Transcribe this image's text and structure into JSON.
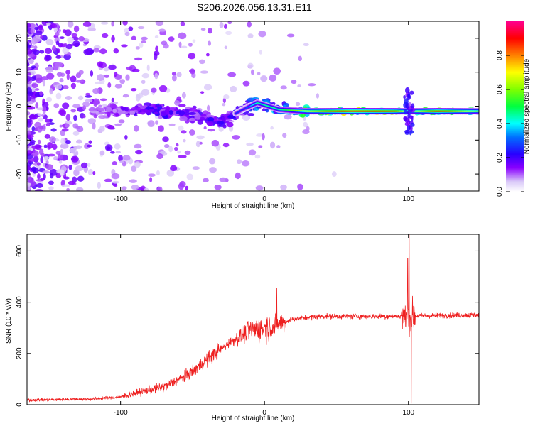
{
  "title": "S206.2026.056.13.31.E11",
  "chart_data": [
    {
      "type": "heatmap",
      "name": "spectrogram",
      "xlabel": "Height of straight line (km)",
      "ylabel": "Frequency (Hz)",
      "xlim": [
        -165,
        149
      ],
      "ylim": [
        -25,
        25
      ],
      "xticks": [
        -100,
        0,
        100
      ],
      "yticks": [
        -20,
        -10,
        0,
        10,
        20
      ],
      "xtick_labels": [
        "-100",
        "0",
        "100"
      ],
      "ytick_labels": [
        "-20",
        "-10",
        "0",
        "10",
        "20"
      ],
      "colorbar": {
        "label": "Normalized spectral amplitude",
        "range": [
          0,
          1
        ],
        "ticks": [
          0.0,
          0.2,
          0.4,
          0.6,
          0.8
        ],
        "tick_labels": [
          "0.0",
          "0.2",
          "0.4",
          "0.6",
          "0.8"
        ],
        "colormap": [
          "#ffffff",
          "#c8a8f0",
          "#7a00ff",
          "#2a00ff",
          "#00a0ff",
          "#00ffff",
          "#00ff60",
          "#80ff00",
          "#ffff00",
          "#ff8000",
          "#ff0000",
          "#ff00a0"
        ]
      },
      "ridge": {
        "description_points": [
          {
            "x": -110,
            "y": -1.5,
            "amp": 0.15
          },
          {
            "x": -80,
            "y": -1.0,
            "amp": 0.3
          },
          {
            "x": -50,
            "y": -2.5,
            "amp": 0.25
          },
          {
            "x": -30,
            "y": -4.5,
            "amp": 0.3
          },
          {
            "x": -15,
            "y": -1.0,
            "amp": 0.25
          },
          {
            "x": -5,
            "y": 1.0,
            "amp": 0.45
          },
          {
            "x": 10,
            "y": -1.0,
            "amp": 0.45
          },
          {
            "x": 30,
            "y": -1.5,
            "amp": 0.7
          },
          {
            "x": 60,
            "y": -1.5,
            "amp": 0.95
          },
          {
            "x": 90,
            "y": -1.5,
            "amp": 0.85
          },
          {
            "x": 100,
            "y": -1.5,
            "amp": 0.6
          },
          {
            "x": 120,
            "y": -1.5,
            "amp": 0.9
          },
          {
            "x": 149,
            "y": -1.5,
            "amp": 0.6
          }
        ]
      }
    },
    {
      "type": "line",
      "name": "snr",
      "xlabel": "Height of straight line (km)",
      "ylabel": "SNR (10 * v/v)",
      "xlim": [
        -165,
        149
      ],
      "ylim": [
        0,
        665
      ],
      "xticks": [
        -100,
        0,
        100
      ],
      "yticks": [
        0,
        200,
        400,
        600
      ],
      "xtick_labels": [
        "-100",
        "0",
        "100"
      ],
      "ytick_labels": [
        "0",
        "200",
        "400",
        "600"
      ],
      "color": "#ee2020",
      "trend": [
        {
          "x": -165,
          "y": 18
        },
        {
          "x": -120,
          "y": 22
        },
        {
          "x": -100,
          "y": 30
        },
        {
          "x": -90,
          "y": 45
        },
        {
          "x": -70,
          "y": 70
        },
        {
          "x": -55,
          "y": 110
        },
        {
          "x": -40,
          "y": 175
        },
        {
          "x": -25,
          "y": 240
        },
        {
          "x": -10,
          "y": 290
        },
        {
          "x": 0,
          "y": 300
        },
        {
          "x": 10,
          "y": 315
        },
        {
          "x": 20,
          "y": 335
        },
        {
          "x": 40,
          "y": 345
        },
        {
          "x": 80,
          "y": 345
        },
        {
          "x": 120,
          "y": 348
        },
        {
          "x": 149,
          "y": 350
        }
      ],
      "peaks": [
        {
          "x": 8.5,
          "y": 455
        },
        {
          "x": 100.5,
          "y": 665
        },
        {
          "x": 99.5,
          "y": 570
        },
        {
          "x": 102,
          "y": 5
        }
      ]
    }
  ]
}
